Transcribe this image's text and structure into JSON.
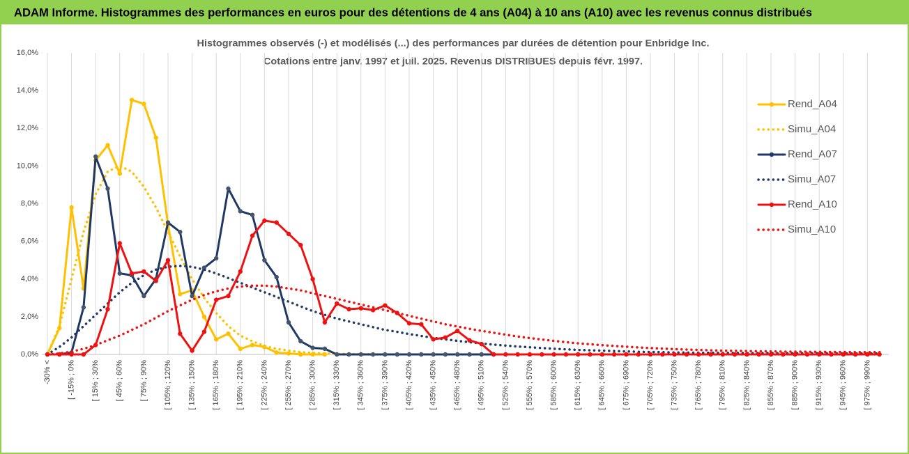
{
  "header": {
    "title": "ADAM Informe. Histogrammes des performances en euros pour des détentions de 4 ans (A04) à 10 ans (A10) avec les revenus connus distribués"
  },
  "chart_data": {
    "type": "line",
    "title": "Histogrammes observés (-) et modélisés (...) des performances par durées de détention pour Enbridge Inc.",
    "subtitle": "Cotations entre janv. 1997 et juil. 2025. Revenus DISTRIBUES depuis févr. 1997.",
    "categories": [
      "-30% <",
      null,
      "[ -15% ; 0%",
      null,
      "[ 15% ; 30%",
      null,
      "[ 45% ; 60%",
      null,
      "[ 75% ; 90%",
      null,
      "[ 105% ; 120%",
      null,
      "[ 135% ; 150%",
      null,
      "[ 165% ; 180%",
      null,
      "[ 195% ; 210%",
      null,
      "[ 225% ; 240%",
      null,
      "[ 255% ; 270%",
      null,
      "[ 285% ; 300%",
      null,
      "[ 315% ; 330%",
      null,
      "[ 345% ; 360%",
      null,
      "[ 375% ; 390%",
      null,
      "[ 405% ; 420%",
      null,
      "[ 435% ; 450%",
      null,
      "[ 465% ; 480%",
      null,
      "[ 495% ; 510%",
      null,
      "[ 525% ; 540%",
      null,
      "[ 555% ; 570%",
      null,
      "[ 585% ; 600%",
      null,
      "[ 615% ; 630%",
      null,
      "[ 645% ; 660%",
      null,
      "[ 675% ; 690%",
      null,
      "[ 705% ; 720%",
      null,
      "[ 735% ; 750%",
      null,
      "[ 765% ; 780%",
      null,
      "[ 795% ; 810%",
      null,
      "[ 825% ; 840%",
      null,
      "[ 855% ; 870%",
      null,
      "[ 885% ; 900%",
      null,
      "[ 915% ; 930%",
      null,
      "[ 945% ; 960%",
      null,
      "[ 975% ; 990%",
      null
    ],
    "series": [
      {
        "name": "Rend_A04",
        "color": "#FFC000",
        "style": "solid",
        "markers": true,
        "values": [
          0,
          1.4,
          7.8,
          3.5,
          10.3,
          11.1,
          9.6,
          13.5,
          13.3,
          11.5,
          6.9,
          3.2,
          3.4,
          2.0,
          0.8,
          1.1,
          0.3,
          0.5,
          0.4,
          0.1,
          0.05,
          0,
          0,
          0,
          null,
          null,
          null,
          null,
          null,
          null,
          null,
          null,
          null,
          null,
          null,
          null,
          null,
          null,
          null,
          null,
          null,
          null,
          null,
          null,
          null,
          null,
          null,
          null,
          null,
          null,
          null,
          null,
          null,
          null,
          null,
          null,
          null,
          null,
          null,
          null,
          null,
          null,
          null,
          null,
          null,
          null,
          null,
          null,
          null,
          null
        ]
      },
      {
        "name": "Simu_A04",
        "color": "#FFC000",
        "style": "dotted",
        "markers": false,
        "values": [
          0,
          1.5,
          4,
          6.5,
          8.5,
          9.7,
          10,
          9.7,
          8.9,
          7.8,
          6.5,
          5.2,
          4,
          3,
          2.2,
          1.5,
          1,
          0.7,
          0.45,
          0.3,
          0.2,
          0.12,
          0.08,
          0.05,
          0.03,
          0.02,
          0.01,
          0.01,
          null,
          null,
          null,
          null,
          null,
          null,
          null,
          null,
          null,
          null,
          null,
          null,
          null,
          null,
          null,
          null,
          null,
          null,
          null,
          null,
          null,
          null,
          null,
          null,
          null,
          null,
          null,
          null,
          null,
          null,
          null,
          null,
          null,
          null,
          null,
          null,
          null,
          null,
          null,
          null,
          null,
          null
        ]
      },
      {
        "name": "Rend_A07",
        "color": "#1F3864",
        "style": "solid",
        "markers": true,
        "values": [
          0,
          0,
          0.1,
          2.5,
          10.5,
          8.8,
          4.3,
          4.2,
          3.1,
          4,
          7,
          6.5,
          3.1,
          4.6,
          5.1,
          8.8,
          7.6,
          7.4,
          5,
          4.1,
          1.7,
          0.7,
          0.35,
          0.3,
          0,
          0,
          0,
          0,
          0,
          0,
          0,
          0,
          0,
          0,
          0,
          0,
          0,
          0,
          null,
          null,
          null,
          null,
          null,
          null,
          null,
          null,
          null,
          null,
          null,
          null,
          null,
          null,
          null,
          null,
          null,
          null,
          null,
          null,
          null,
          null,
          null,
          null,
          null,
          null,
          null,
          null,
          null,
          null,
          null,
          null
        ]
      },
      {
        "name": "Simu_A07",
        "color": "#1F3864",
        "style": "dotted",
        "markers": false,
        "values": [
          0,
          0.4,
          0.9,
          1.5,
          2.1,
          2.7,
          3.3,
          3.8,
          4.2,
          4.5,
          4.65,
          4.7,
          4.65,
          4.5,
          4.3,
          4.05,
          3.8,
          3.55,
          3.3,
          3.05,
          2.8,
          2.55,
          2.3,
          2.1,
          1.9,
          1.75,
          1.6,
          1.45,
          1.3,
          1.2,
          1.08,
          0.98,
          0.88,
          0.8,
          0.72,
          0.65,
          0.58,
          0.52,
          0.47,
          0.42,
          0.38,
          0.34,
          0.3,
          0.27,
          0.24,
          0.22,
          0.2,
          0.18,
          0.16,
          0.14,
          0.13,
          0.12,
          0.1,
          0.1,
          0.09,
          0.09,
          0.08,
          0.08,
          0.07,
          0.07,
          0.07,
          0.06,
          0.06,
          0.06,
          0.06,
          0.05,
          0.05,
          0.05,
          0.05,
          0.05
        ]
      },
      {
        "name": "Rend_A10",
        "color": "#EE1111",
        "style": "solid",
        "markers": true,
        "values": [
          0,
          0,
          0,
          0,
          0.5,
          2.4,
          5.9,
          4.3,
          4.4,
          3.9,
          5,
          1.1,
          0.2,
          1.2,
          2.9,
          3.1,
          4.4,
          6.3,
          7.1,
          7,
          6.4,
          5.8,
          4,
          1.7,
          2.7,
          2.4,
          2.45,
          2.35,
          2.6,
          2.2,
          1.65,
          1.6,
          0.8,
          0.9,
          1.25,
          0.75,
          0.55,
          0,
          0,
          0,
          0,
          0,
          0,
          0,
          0,
          0,
          0,
          0,
          0,
          0,
          0,
          0,
          0,
          0,
          0,
          0,
          0,
          0,
          0,
          0,
          0,
          0,
          0,
          0,
          0,
          0,
          0,
          0,
          0,
          0
        ]
      },
      {
        "name": "Simu_A10",
        "color": "#EE1111",
        "style": "dotted",
        "markers": false,
        "values": [
          0,
          0.05,
          0.15,
          0.3,
          0.5,
          0.75,
          1,
          1.3,
          1.6,
          1.95,
          2.3,
          2.6,
          2.9,
          3.15,
          3.35,
          3.5,
          3.6,
          3.65,
          3.65,
          3.6,
          3.5,
          3.4,
          3.25,
          3.1,
          2.95,
          2.8,
          2.65,
          2.5,
          2.35,
          2.2,
          2.05,
          1.9,
          1.75,
          1.6,
          1.48,
          1.36,
          1.25,
          1.15,
          1.05,
          0.95,
          0.87,
          0.79,
          0.72,
          0.65,
          0.59,
          0.54,
          0.49,
          0.45,
          0.41,
          0.37,
          0.34,
          0.31,
          0.28,
          0.26,
          0.24,
          0.22,
          0.2,
          0.19,
          0.18,
          0.17,
          0.16,
          0.15,
          0.15,
          0.14,
          0.14,
          0.13,
          0.13,
          0.12,
          0.12,
          0.12
        ]
      }
    ],
    "ylim": [
      0,
      16
    ],
    "yticks": [
      {
        "value": 0,
        "label": "0,0%"
      },
      {
        "value": 2,
        "label": "2,0%"
      },
      {
        "value": 4,
        "label": "4,0%"
      },
      {
        "value": 6,
        "label": "6,0%"
      },
      {
        "value": 8,
        "label": "8,0%"
      },
      {
        "value": 10,
        "label": "10,0%"
      },
      {
        "value": 12,
        "label": "12,0%"
      },
      {
        "value": 14,
        "label": "14,0%"
      },
      {
        "value": 16,
        "label": "16,0%"
      }
    ],
    "grid": "vertical",
    "legend": "right"
  }
}
